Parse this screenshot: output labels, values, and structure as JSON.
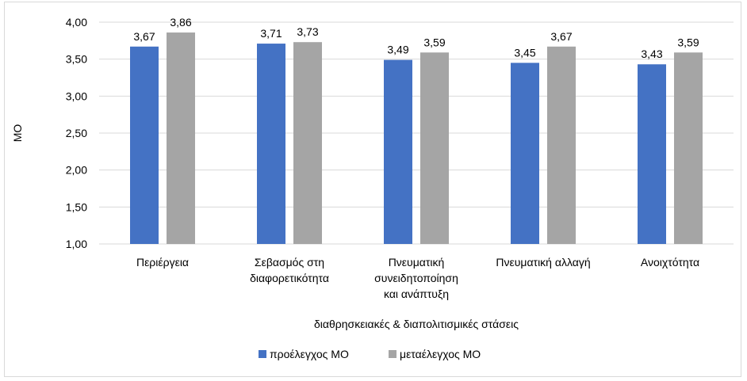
{
  "chart_data": {
    "type": "bar",
    "categories": [
      [
        "Περιέργεια"
      ],
      [
        "Σεβασμός στη",
        "διαφορετικότητα"
      ],
      [
        "Πνευματική",
        "συνειδητοποίηση",
        "και ανάπτυξη"
      ],
      [
        "Πνευματική αλλαγή"
      ],
      [
        "Ανοιχτότητα"
      ]
    ],
    "series": [
      {
        "name": "προέλεγχος ΜΟ",
        "color": "#4472C4",
        "values": [
          3.67,
          3.71,
          3.49,
          3.45,
          3.43
        ],
        "labels": [
          "3,67",
          "3,71",
          "3,49",
          "3,45",
          "3,43"
        ]
      },
      {
        "name": "μεταέλεγχος ΜΟ",
        "color": "#A5A5A5",
        "values": [
          3.86,
          3.73,
          3.59,
          3.67,
          3.59
        ],
        "labels": [
          "3,86",
          "3,73",
          "3,59",
          "3,67",
          "3,59"
        ]
      }
    ],
    "xlabel": "διαθρησκειακές & διαπολιτισμικές στάσεις",
    "ylabel": "ΜΟ",
    "ylim": [
      1.0,
      4.0
    ],
    "yticks": [
      1.0,
      1.5,
      2.0,
      2.5,
      3.0,
      3.5,
      4.0
    ],
    "ytick_labels": [
      "1,00",
      "1,50",
      "2,00",
      "2,50",
      "3,00",
      "3,50",
      "4,00"
    ],
    "grid": true,
    "gridline_color": "#d9d9d9",
    "legend": "bottom"
  }
}
